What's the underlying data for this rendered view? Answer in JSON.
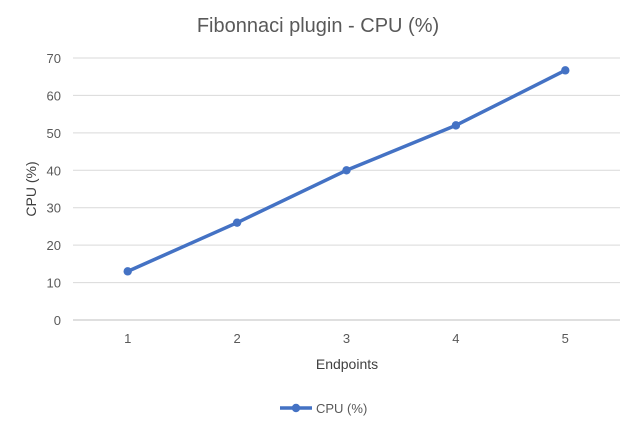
{
  "chart_data": {
    "type": "line",
    "title": "Fibonnaci plugin - CPU (%)",
    "xlabel": "Endpoints",
    "ylabel": "CPU (%)",
    "x": [
      1,
      2,
      3,
      4,
      5
    ],
    "ylim": [
      0,
      70
    ],
    "yticks": [
      0,
      10,
      20,
      30,
      40,
      50,
      60,
      70
    ],
    "grid": true,
    "legend": "bottom",
    "series": [
      {
        "name": "CPU (%)",
        "values": [
          13,
          26,
          40,
          52,
          66.7
        ],
        "color": "#4472C4"
      }
    ]
  }
}
